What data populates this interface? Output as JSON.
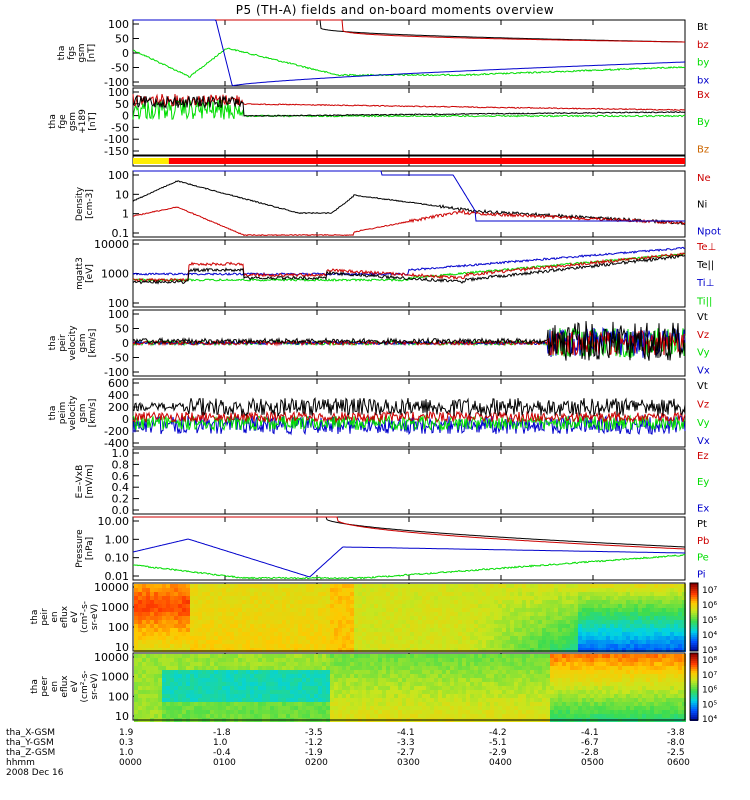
{
  "title": "P5 (TH-A) fields and on-board moments overview",
  "colors": {
    "black": "#000000",
    "red": "#cc0000",
    "green": "#00dd00",
    "blue": "#0000cc"
  },
  "chart_data": [
    {
      "type": "line",
      "ylabel": [
        "tha",
        "fgs",
        "gsm",
        "[nT]"
      ],
      "yticks": [
        "100",
        "50",
        "0",
        "-50",
        "-100"
      ],
      "ylim": [
        -100,
        100
      ],
      "legend": [
        {
          "label": "Bt",
          "color": "#000000"
        },
        {
          "label": "bz",
          "color": "#cc0000"
        },
        {
          "label": "by",
          "color": "#00dd00"
        },
        {
          "label": "bx",
          "color": "#0000cc"
        }
      ]
    },
    {
      "type": "line",
      "ylabel": [
        "tha",
        "fge",
        "gsm",
        "+189",
        "[nT]"
      ],
      "yticks": [
        "100",
        "50",
        "0",
        "-50",
        "-100",
        "-150"
      ],
      "ylim": [
        -175,
        100
      ],
      "legend": [
        {
          "label": "Bx",
          "color": "#cc0000"
        },
        {
          "label": "By",
          "color": "#00dd00"
        },
        {
          "label": "Bz",
          "color": "#cc6600"
        }
      ]
    },
    {
      "type": "bar",
      "description_bar": "mode bar",
      "segments": [
        {
          "from": 0,
          "to": 0.065,
          "color": "#ffee00"
        },
        {
          "from": 0.065,
          "to": 1,
          "color": "#ff0000"
        }
      ]
    },
    {
      "type": "line",
      "ylabel": [
        "Density",
        "[cm-3]"
      ],
      "yticks": [
        "100",
        "10",
        "1",
        "0.1"
      ],
      "scale": "log",
      "legend": [
        {
          "label": "Ne",
          "color": "#cc0000"
        },
        {
          "label": "Ni",
          "color": "#000000"
        },
        {
          "label": "Npot",
          "color": "#0000cc"
        }
      ]
    },
    {
      "type": "line",
      "ylabel": [
        "mgatt3",
        "[eV]"
      ],
      "yticks": [
        "10000",
        "1000",
        "100"
      ],
      "scale": "log",
      "legend": [
        {
          "label": "Te⊥",
          "color": "#cc0000"
        },
        {
          "label": "Te||",
          "color": "#000000"
        },
        {
          "label": "Ti⊥",
          "color": "#0000cc"
        },
        {
          "label": "Ti||",
          "color": "#00dd00"
        }
      ]
    },
    {
      "type": "line",
      "ylabel": [
        "tha",
        "peir",
        "velocity",
        "gsm",
        "[km/s]"
      ],
      "yticks": [
        "100",
        "50",
        "0",
        "-50",
        "-100"
      ],
      "ylim": [
        -100,
        100
      ],
      "legend": [
        {
          "label": "Vt",
          "color": "#000000"
        },
        {
          "label": "Vz",
          "color": "#cc0000"
        },
        {
          "label": "Vy",
          "color": "#00dd00"
        },
        {
          "label": "Vx",
          "color": "#0000cc"
        }
      ]
    },
    {
      "type": "line",
      "ylabel": [
        "tha",
        "peim",
        "velocity",
        "gsm",
        "[km/s]"
      ],
      "yticks": [
        "600",
        "400",
        "200",
        "0",
        "-200",
        "-400"
      ],
      "ylim": [
        -400,
        600
      ],
      "legend": [
        {
          "label": "Vt",
          "color": "#000000"
        },
        {
          "label": "Vz",
          "color": "#cc0000"
        },
        {
          "label": "Vy",
          "color": "#00dd00"
        },
        {
          "label": "Vx",
          "color": "#0000cc"
        }
      ]
    },
    {
      "type": "line",
      "ylabel": [
        "E=-VxB",
        "[mV/m]"
      ],
      "yticks": [
        "1.0",
        "0.8",
        "0.6",
        "0.4",
        "0.2",
        "0.0"
      ],
      "ylim": [
        0,
        1
      ],
      "legend": [
        {
          "label": "Ez",
          "color": "#cc0000"
        },
        {
          "label": "Ey",
          "color": "#00dd00"
        },
        {
          "label": "Ex",
          "color": "#0000cc"
        }
      ]
    },
    {
      "type": "line",
      "ylabel": [
        "Pressure",
        "[nPa]"
      ],
      "yticks": [
        "10.00",
        "1.00",
        "0.10",
        "0.01"
      ],
      "scale": "log",
      "legend": [
        {
          "label": "Pt",
          "color": "#000000"
        },
        {
          "label": "Pb",
          "color": "#cc0000"
        },
        {
          "label": "Pe",
          "color": "#00dd00"
        },
        {
          "label": "Pi",
          "color": "#0000cc"
        }
      ]
    },
    {
      "type": "heatmap",
      "ylabel": [
        "tha",
        "peir",
        "en",
        "eflux",
        "eV",
        "(cm²-s-",
        "sr-eV)"
      ],
      "yticks": [
        "10000",
        "1000",
        "100",
        "10"
      ],
      "colorbar": [
        "10⁷",
        "10⁶",
        "10⁵",
        "10⁴",
        "10³"
      ]
    },
    {
      "type": "heatmap",
      "ylabel": [
        "tha",
        "peer",
        "en",
        "eflux",
        "eV",
        "(cm²-s-",
        "sr-eV)"
      ],
      "yticks": [
        "10000",
        "1000",
        "100",
        "10"
      ],
      "colorbar": [
        "10⁸",
        "10⁷",
        "10⁶",
        "10⁵",
        "10⁴"
      ]
    }
  ],
  "xaxis": {
    "rows": [
      {
        "label": "tha_X-GSM",
        "values": [
          "1.9",
          "-1.8",
          "-3.5",
          "-4.1",
          "-4.2",
          "-4.1",
          "-3.8"
        ]
      },
      {
        "label": "tha_Y-GSM",
        "values": [
          "0.3",
          "1.0",
          "-1.2",
          "-3.3",
          "-5.1",
          "-6.7",
          "-8.0"
        ]
      },
      {
        "label": "tha_Z-GSM",
        "values": [
          "1.0",
          "-0.4",
          "-1.9",
          "-2.7",
          "-2.9",
          "-2.8",
          "-2.5"
        ]
      },
      {
        "label": "hhmm",
        "values": [
          "0000",
          "0100",
          "0200",
          "0300",
          "0400",
          "0500",
          "0600"
        ]
      }
    ],
    "date": "2008 Dec 16"
  }
}
